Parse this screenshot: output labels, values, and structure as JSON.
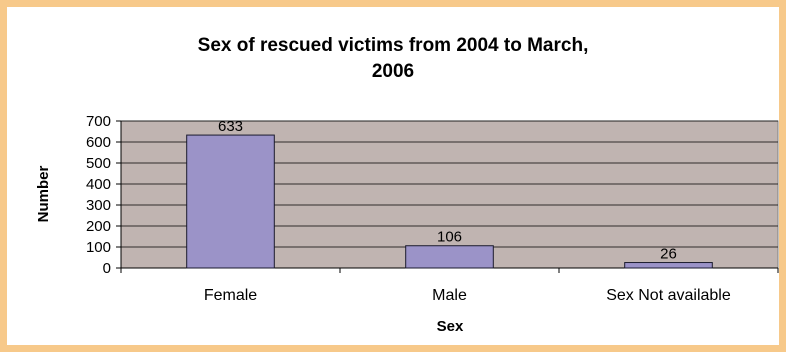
{
  "chart_data": {
    "type": "bar",
    "title_line1": "Sex of rescued victims from 2004 to March,",
    "title_line2": "2006",
    "xlabel": "Sex",
    "ylabel": "Number",
    "categories": [
      "Female",
      "Male",
      "Sex Not available"
    ],
    "values": [
      633,
      106,
      26
    ],
    "data_labels": [
      "633",
      "106",
      "26"
    ],
    "ylim": [
      0,
      700
    ],
    "yticks": [
      0,
      100,
      200,
      300,
      400,
      500,
      600,
      700
    ],
    "ytick_labels": [
      "0",
      "100",
      "200",
      "300",
      "400",
      "500",
      "600",
      "700"
    ],
    "grid": true,
    "legend": "none",
    "colors": {
      "frame": "#f7c98a",
      "plot_background": "#c0b4b1",
      "bar_fill": "#9b93c8",
      "bar_stroke": "#1a1a2e",
      "gridline": "#000000"
    }
  }
}
